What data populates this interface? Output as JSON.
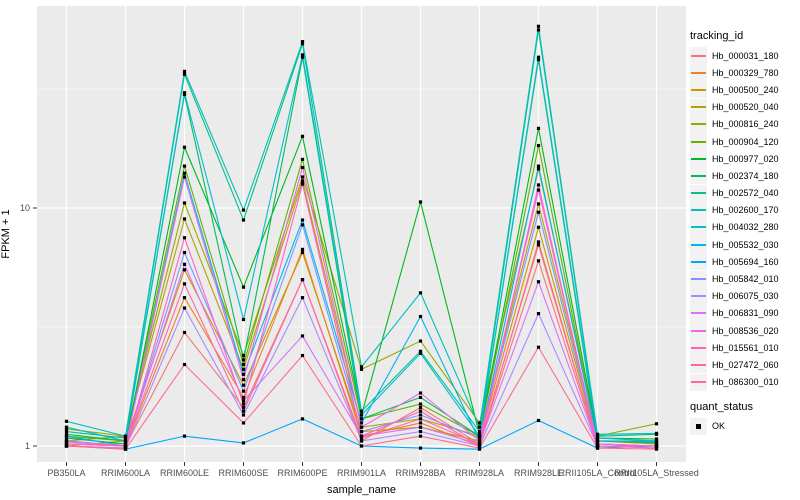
{
  "figure": {
    "background": "#FFFFFF",
    "panel_background": "#EBEBEB",
    "grid_color": "#FFFFFF",
    "tick_label_color": "#4D4D4D",
    "point_color": "#000000"
  },
  "axes": {
    "x_title": "sample_name",
    "y_title": "FPKM + 1",
    "y_tick_labels": [
      "1",
      "10"
    ]
  },
  "legend": {
    "tracking_title": "tracking_id",
    "quant_title": "quant_status",
    "quant_items": [
      {
        "label": "OK",
        "key": "black-square"
      }
    ]
  },
  "chart_data": {
    "type": "line",
    "title": "",
    "xlabel": "sample_name",
    "ylabel": "FPKM + 1",
    "y_scale": "log10",
    "ylim": [
      0.86,
      70
    ],
    "y_major_breaks": [
      1,
      10
    ],
    "y_minor_breaks": [
      3.162,
      31.623
    ],
    "grid": true,
    "legend_position": "right",
    "point_shape": "filled-square",
    "quant_status": "OK",
    "categories": [
      "PB350LA",
      "RRIM600LA",
      "RRIM600LE",
      "RRIM600SE",
      "RRIM600PE",
      "RRIM901LA",
      "RRIM928BA",
      "RRIM928LA",
      "RRIM928LE",
      "RRII105LA_Control",
      "RRII105LA_Stressed"
    ],
    "series": [
      {
        "name": "Hb_000031_180",
        "color": "#F8766D",
        "values": [
          1.05,
          1.0,
          3.0,
          1.45,
          5.0,
          1.05,
          1.45,
          1.02,
          6.0,
          1.0,
          1.0
        ]
      },
      {
        "name": "Hb_000329_780",
        "color": "#E88526",
        "values": [
          1.02,
          1.0,
          4.2,
          1.6,
          6.7,
          1.1,
          1.25,
          1.0,
          7.2,
          1.0,
          1.0
        ]
      },
      {
        "name": "Hb_000500_240",
        "color": "#D39200",
        "values": [
          1.0,
          1.05,
          5.5,
          1.8,
          6.5,
          1.15,
          1.2,
          1.05,
          8.3,
          1.02,
          1.0
        ]
      },
      {
        "name": "Hb_000520_040",
        "color": "#B79F00",
        "values": [
          1.05,
          1.1,
          9.0,
          2.1,
          13.0,
          1.2,
          1.3,
          1.1,
          10.4,
          1.05,
          1.02
        ]
      },
      {
        "name": "Hb_000816_240",
        "color": "#93AA00",
        "values": [
          1.18,
          1.1,
          10.5,
          2.4,
          13.5,
          2.1,
          2.76,
          1.25,
          14.6,
          1.1,
          1.24
        ]
      },
      {
        "name": "Hb_000904_120",
        "color": "#64B200",
        "values": [
          1.1,
          1.05,
          15.0,
          2.2,
          16.0,
          1.3,
          1.5,
          1.1,
          18.3,
          1.05,
          1.05
        ]
      },
      {
        "name": "Hb_000977_020",
        "color": "#00B81F",
        "values": [
          1.08,
          1.02,
          18.0,
          4.65,
          20.0,
          1.35,
          10.6,
          1.12,
          21.6,
          1.08,
          1.07
        ]
      },
      {
        "name": "Hb_002374_180",
        "color": "#00BC59",
        "values": [
          1.12,
          1.05,
          30.0,
          2.3,
          43.0,
          1.3,
          1.6,
          1.1,
          42.0,
          1.05,
          1.03
        ]
      },
      {
        "name": "Hb_002572_040",
        "color": "#00C08B",
        "values": [
          1.15,
          1.08,
          36.5,
          8.9,
          49.0,
          1.4,
          2.5,
          1.15,
          56.0,
          1.1,
          1.12
        ]
      },
      {
        "name": "Hb_002600_170",
        "color": "#00C0B8",
        "values": [
          1.27,
          1.1,
          37.5,
          9.8,
          50.0,
          2.15,
          4.4,
          1.2,
          58.0,
          1.12,
          1.13
        ]
      },
      {
        "name": "Hb_004032_280",
        "color": "#00BDD0",
        "values": [
          1.2,
          1.05,
          30.5,
          3.4,
          44.0,
          1.35,
          2.45,
          1.1,
          43.0,
          1.08,
          1.05
        ]
      },
      {
        "name": "Hb_005532_030",
        "color": "#00B4EF",
        "values": [
          1.1,
          1.0,
          14.0,
          2.0,
          8.9,
          1.25,
          3.5,
          1.05,
          15.0,
          1.05,
          1.04
        ]
      },
      {
        "name": "Hb_005694_160",
        "color": "#00A5FF",
        "values": [
          1.0,
          0.97,
          1.1,
          1.03,
          1.3,
          1.0,
          0.98,
          0.97,
          1.28,
          0.98,
          1.0
        ]
      },
      {
        "name": "Hb_005842_010",
        "color": "#7997FF",
        "values": [
          1.05,
          1.0,
          6.5,
          1.7,
          8.5,
          1.15,
          1.35,
          1.08,
          9.6,
          1.02,
          1.0
        ]
      },
      {
        "name": "Hb_006075_030",
        "color": "#AC88FF",
        "values": [
          1.0,
          0.98,
          3.8,
          1.35,
          4.2,
          1.05,
          1.15,
          1.0,
          3.6,
          1.0,
          0.98
        ]
      },
      {
        "name": "Hb_006831_090",
        "color": "#DC71FA",
        "values": [
          1.02,
          1.0,
          5.8,
          1.55,
          2.9,
          1.1,
          1.2,
          1.02,
          4.9,
          1.0,
          1.0
        ]
      },
      {
        "name": "Hb_008536_020",
        "color": "#F066EA",
        "values": [
          1.04,
          1.0,
          13.5,
          1.9,
          14.8,
          1.2,
          1.67,
          1.05,
          11.9,
          1.02,
          1.0
        ]
      },
      {
        "name": "Hb_015561_010",
        "color": "#FF61C7",
        "values": [
          1.0,
          0.98,
          7.5,
          1.5,
          12.6,
          1.1,
          1.4,
          1.0,
          12.5,
          1.0,
          0.98
        ]
      },
      {
        "name": "Hb_027472_060",
        "color": "#FF67A4",
        "values": [
          1.02,
          1.0,
          4.8,
          1.4,
          5.0,
          1.08,
          1.3,
          1.02,
          7.0,
          1.0,
          1.0
        ]
      },
      {
        "name": "Hb_086300_010",
        "color": "#FF6C91",
        "values": [
          1.0,
          0.97,
          2.2,
          1.25,
          2.4,
          1.0,
          1.1,
          0.98,
          2.6,
          0.98,
          0.97
        ]
      }
    ]
  }
}
